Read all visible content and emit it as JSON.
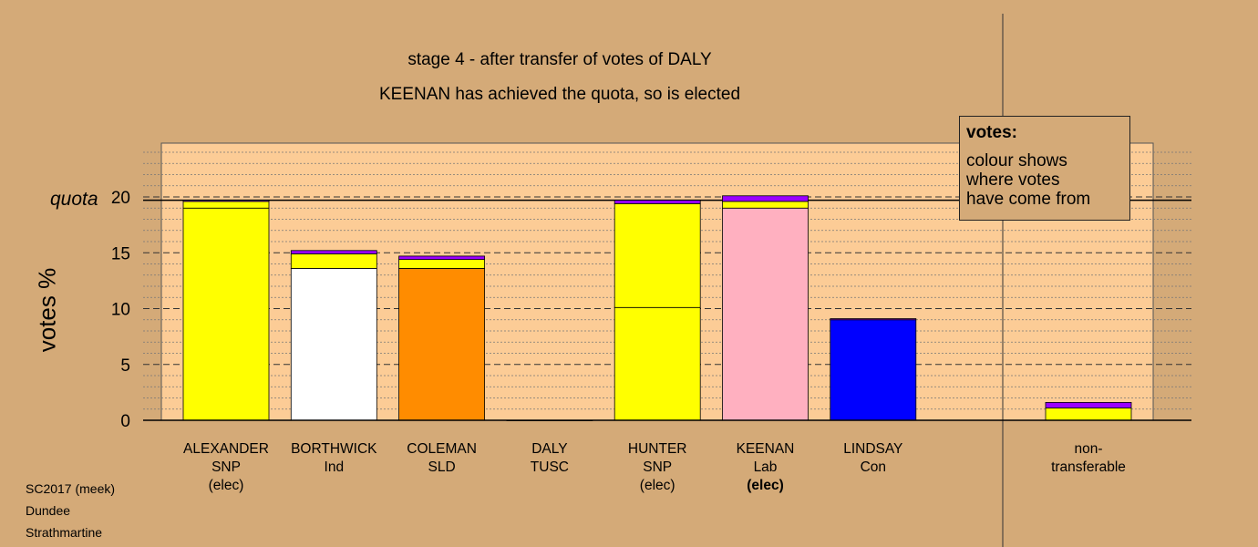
{
  "title_lines": [
    "stage 4 - after transfer of votes of DALY",
    "KEENAN has achieved the quota, so is elected"
  ],
  "legend": {
    "heading": "votes:",
    "lines": [
      "colour shows",
      "where votes",
      "have come from"
    ]
  },
  "footer": [
    "SC2017 (meek)",
    "Dundee",
    "Strathmartine"
  ],
  "colors": {
    "background": "#d4aa78",
    "plot_background": "#fccc96",
    "SNP": "#ffff00",
    "Ind": "#ffffff",
    "SLD": "#ff8c00",
    "Lab": "#ffb0c0",
    "Con": "#0000ff",
    "transfer": "#9a00ff"
  },
  "chart_data": {
    "type": "bar",
    "stacked": true,
    "ylabel": "votes %",
    "quota_label": "quota",
    "quota": 19.7,
    "ylim": [
      0,
      25
    ],
    "yticks": [
      0,
      5,
      10,
      15,
      20
    ],
    "grid": true,
    "legend_position": "top-right",
    "candidates": [
      {
        "name": "ALEXANDER",
        "party": "SNP",
        "status": "(elec)",
        "status_bold": false,
        "segments": [
          {
            "color": "#ffff00",
            "value": 19.0
          },
          {
            "color": "#ffff00",
            "value": 0.6
          },
          {
            "color": "#9a00ff",
            "value": 0.1
          }
        ]
      },
      {
        "name": "BORTHWICK",
        "party": "Ind",
        "status": "",
        "status_bold": false,
        "segments": [
          {
            "color": "#ffffff",
            "value": 13.6
          },
          {
            "color": "#ffff00",
            "value": 1.3
          },
          {
            "color": "#9a00ff",
            "value": 0.3
          }
        ]
      },
      {
        "name": "COLEMAN",
        "party": "SLD",
        "status": "",
        "status_bold": false,
        "segments": [
          {
            "color": "#ff8c00",
            "value": 13.6
          },
          {
            "color": "#ffff00",
            "value": 0.8
          },
          {
            "color": "#9a00ff",
            "value": 0.3
          }
        ]
      },
      {
        "name": "DALY",
        "party": "TUSC",
        "status": "",
        "status_bold": false,
        "segments": [
          {
            "color": "#9a00ff",
            "value": 0.0
          }
        ]
      },
      {
        "name": "HUNTER",
        "party": "SNP",
        "status": "(elec)",
        "status_bold": false,
        "segments": [
          {
            "color": "#ffff00",
            "value": 10.1
          },
          {
            "color": "#ffff00",
            "value": 9.3
          },
          {
            "color": "#9a00ff",
            "value": 0.3
          }
        ]
      },
      {
        "name": "KEENAN",
        "party": "Lab",
        "status": "(elec)",
        "status_bold": true,
        "segments": [
          {
            "color": "#ffb0c0",
            "value": 19.0
          },
          {
            "color": "#ffff00",
            "value": 0.6
          },
          {
            "color": "#9a00ff",
            "value": 0.5
          }
        ]
      },
      {
        "name": "LINDSAY",
        "party": "Con",
        "status": "",
        "status_bold": false,
        "segments": [
          {
            "color": "#0000ff",
            "value": 9.0
          },
          {
            "color": "#9a00ff",
            "value": 0.1
          }
        ]
      }
    ],
    "non_transferable": {
      "label": [
        "non-",
        "transferable"
      ],
      "segments": [
        {
          "color": "#ffff00",
          "value": 1.1
        },
        {
          "color": "#9a00ff",
          "value": 0.5
        }
      ]
    }
  }
}
